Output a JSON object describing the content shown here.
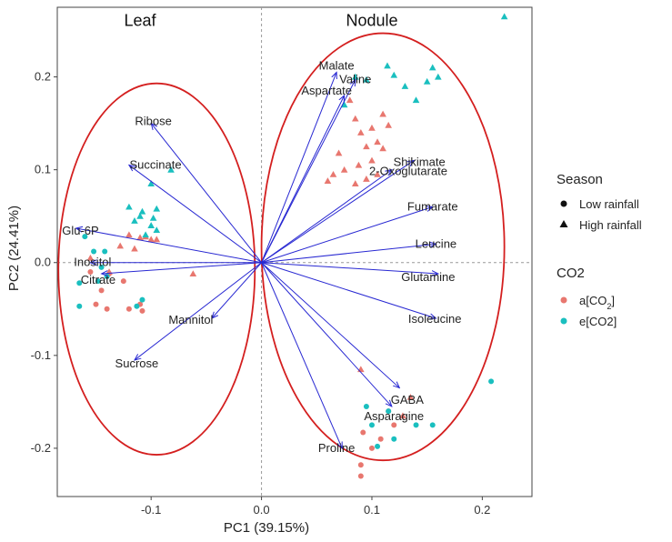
{
  "chart_data": {
    "type": "scatter",
    "subtype": "pca-biplot",
    "xlabel": "PC1 (39.15%)",
    "ylabel": "PC2 (24.41%)",
    "xlim": [
      -0.185,
      0.245
    ],
    "ylim": [
      -0.252,
      0.275
    ],
    "xticks": [
      -0.1,
      0.0,
      0.1,
      0.2
    ],
    "xtick_labels": [
      "-0.1",
      "0.0",
      "0.1",
      "0.2"
    ],
    "yticks": [
      -0.2,
      -0.1,
      0.0,
      0.1,
      0.2
    ],
    "ytick_labels": [
      "-0.2",
      "-0.1",
      "0.0",
      "0.1",
      "0.2"
    ],
    "group_labels": [
      {
        "text": "Leaf",
        "x": -0.11,
        "y": 0.255
      },
      {
        "text": "Nodule",
        "x": 0.1,
        "y": 0.255
      }
    ],
    "ellipses": [
      {
        "name": "Leaf",
        "cx": -0.095,
        "cy": -0.007,
        "rx": 0.089,
        "ry": 0.2
      },
      {
        "name": "Nodule",
        "cx": 0.11,
        "cy": 0.017,
        "rx": 0.11,
        "ry": 0.23
      }
    ],
    "loadings": [
      {
        "name": "Malate",
        "x": 0.068,
        "y": 0.205,
        "label_x": 0.068,
        "label_y": 0.212
      },
      {
        "name": "Valine",
        "x": 0.085,
        "y": 0.197,
        "label_x": 0.085,
        "label_y": 0.197
      },
      {
        "name": "Aspartate",
        "x": 0.075,
        "y": 0.18,
        "label_x": 0.059,
        "label_y": 0.185
      },
      {
        "name": "Ribose",
        "x": -0.1,
        "y": 0.15,
        "label_x": -0.098,
        "label_y": 0.152
      },
      {
        "name": "Succinate",
        "x": -0.12,
        "y": 0.105,
        "label_x": -0.096,
        "label_y": 0.105
      },
      {
        "name": "Shikimate",
        "x": 0.138,
        "y": 0.11,
        "label_x": 0.143,
        "label_y": 0.108
      },
      {
        "name": "2-Oxoglutarate",
        "x": 0.118,
        "y": 0.1,
        "label_x": 0.133,
        "label_y": 0.098
      },
      {
        "name": "Fumarate",
        "x": 0.155,
        "y": 0.06,
        "label_x": 0.155,
        "label_y": 0.06
      },
      {
        "name": "Glu-6P",
        "x": -0.168,
        "y": 0.037,
        "label_x": -0.164,
        "label_y": 0.034
      },
      {
        "name": "Leucine",
        "x": 0.158,
        "y": 0.02,
        "label_x": 0.158,
        "label_y": 0.02
      },
      {
        "name": "Inositol",
        "x": -0.155,
        "y": 0.0,
        "label_x": -0.153,
        "label_y": 0.0
      },
      {
        "name": "Glutamine",
        "x": 0.16,
        "y": -0.012,
        "label_x": 0.151,
        "label_y": -0.016
      },
      {
        "name": "Citrate",
        "x": -0.145,
        "y": -0.012,
        "label_x": -0.148,
        "label_y": -0.019
      },
      {
        "name": "Mannitol",
        "x": -0.045,
        "y": -0.06,
        "label_x": -0.064,
        "label_y": -0.062
      },
      {
        "name": "Isoleucine",
        "x": 0.158,
        "y": -0.06,
        "label_x": 0.157,
        "label_y": -0.061
      },
      {
        "name": "Sucrose",
        "x": -0.115,
        "y": -0.105,
        "label_x": -0.113,
        "label_y": -0.109
      },
      {
        "name": "GABA",
        "x": 0.125,
        "y": -0.135,
        "label_x": 0.132,
        "label_y": -0.148
      },
      {
        "name": "Asparagine",
        "x": 0.118,
        "y": -0.155,
        "label_x": 0.12,
        "label_y": -0.166
      },
      {
        "name": "Proline",
        "x": 0.073,
        "y": -0.2,
        "label_x": 0.068,
        "label_y": -0.2
      }
    ],
    "series": [
      {
        "name": "a[CO2] Low rainfall",
        "co2": "a[CO2]",
        "season": "Low rainfall",
        "points": [
          [
            -0.125,
            -0.02
          ],
          [
            -0.145,
            -0.03
          ],
          [
            -0.15,
            -0.045
          ],
          [
            -0.14,
            -0.05
          ],
          [
            -0.12,
            -0.05
          ],
          [
            -0.11,
            -0.045
          ],
          [
            -0.108,
            -0.052
          ],
          [
            -0.138,
            -0.012
          ],
          [
            -0.155,
            -0.01
          ],
          [
            0.092,
            -0.183
          ],
          [
            0.1,
            -0.2
          ],
          [
            0.108,
            -0.19
          ],
          [
            0.12,
            -0.175
          ],
          [
            0.09,
            -0.218
          ],
          [
            0.09,
            -0.23
          ],
          [
            0.115,
            -0.16
          ]
        ]
      },
      {
        "name": "a[CO2] High rainfall",
        "co2": "a[CO2]",
        "season": "High rainfall",
        "points": [
          [
            -0.12,
            0.03
          ],
          [
            -0.11,
            0.027
          ],
          [
            -0.105,
            0.028
          ],
          [
            -0.1,
            0.025
          ],
          [
            -0.095,
            0.025
          ],
          [
            -0.128,
            0.018
          ],
          [
            -0.115,
            0.015
          ],
          [
            -0.138,
            -0.01
          ],
          [
            -0.155,
            0.005
          ],
          [
            -0.062,
            -0.012
          ],
          [
            0.08,
            0.175
          ],
          [
            0.085,
            0.155
          ],
          [
            0.09,
            0.14
          ],
          [
            0.095,
            0.125
          ],
          [
            0.1,
            0.145
          ],
          [
            0.105,
            0.13
          ],
          [
            0.11,
            0.16
          ],
          [
            0.115,
            0.148
          ],
          [
            0.11,
            0.123
          ],
          [
            0.1,
            0.11
          ],
          [
            0.105,
            0.095
          ],
          [
            0.095,
            0.09
          ],
          [
            0.085,
            0.085
          ],
          [
            0.075,
            0.1
          ],
          [
            0.07,
            0.118
          ],
          [
            0.065,
            0.095
          ],
          [
            0.06,
            0.088
          ],
          [
            0.088,
            0.105
          ],
          [
            0.09,
            -0.115
          ],
          [
            0.128,
            -0.165
          ],
          [
            0.135,
            -0.145
          ]
        ]
      },
      {
        "name": "e[CO2] Low rainfall",
        "co2": "e[CO2]",
        "season": "Low rainfall",
        "points": [
          [
            -0.16,
            0.028
          ],
          [
            -0.152,
            0.012
          ],
          [
            -0.142,
            0.012
          ],
          [
            -0.145,
            -0.005
          ],
          [
            -0.14,
            -0.015
          ],
          [
            -0.148,
            -0.02
          ],
          [
            -0.165,
            -0.022
          ],
          [
            -0.165,
            -0.047
          ],
          [
            -0.108,
            -0.04
          ],
          [
            -0.113,
            -0.047
          ],
          [
            0.095,
            -0.155
          ],
          [
            0.1,
            -0.175
          ],
          [
            0.105,
            -0.198
          ],
          [
            0.115,
            -0.16
          ],
          [
            0.12,
            -0.19
          ],
          [
            0.14,
            -0.175
          ],
          [
            0.155,
            -0.175
          ],
          [
            0.208,
            -0.128
          ]
        ]
      },
      {
        "name": "e[CO2] High rainfall",
        "co2": "e[CO2]",
        "season": "High rainfall",
        "points": [
          [
            -0.082,
            0.1
          ],
          [
            -0.1,
            0.085
          ],
          [
            -0.12,
            0.06
          ],
          [
            -0.11,
            0.05
          ],
          [
            -0.108,
            0.055
          ],
          [
            -0.095,
            0.058
          ],
          [
            -0.098,
            0.048
          ],
          [
            -0.115,
            0.045
          ],
          [
            -0.1,
            0.04
          ],
          [
            -0.095,
            0.035
          ],
          [
            -0.105,
            0.03
          ],
          [
            0.085,
            0.2
          ],
          [
            0.095,
            0.197
          ],
          [
            0.114,
            0.212
          ],
          [
            0.12,
            0.202
          ],
          [
            0.13,
            0.19
          ],
          [
            0.14,
            0.175
          ],
          [
            0.15,
            0.195
          ],
          [
            0.155,
            0.21
          ],
          [
            0.16,
            0.2
          ],
          [
            0.22,
            0.265
          ],
          [
            0.075,
            0.17
          ]
        ]
      }
    ],
    "colors": {
      "a[CO2]": "#E8776F",
      "e[CO2]": "#1ABFBF",
      "arrow": "#2828D2",
      "ellipse": "#D41F1F"
    },
    "legend": {
      "position": "right",
      "season_title": "Season",
      "season_items": [
        {
          "label": "Low rainfall",
          "shape": "circle"
        },
        {
          "label": "High rainfall",
          "shape": "triangle"
        }
      ],
      "co2_title": "CO2",
      "co2_items": [
        {
          "label": "a[CO",
          "sub": "2",
          "suffix": "]",
          "color_key": "a[CO2]"
        },
        {
          "label": "e[CO2]",
          "sub": "",
          "suffix": "",
          "color_key": "e[CO2]"
        }
      ]
    }
  }
}
